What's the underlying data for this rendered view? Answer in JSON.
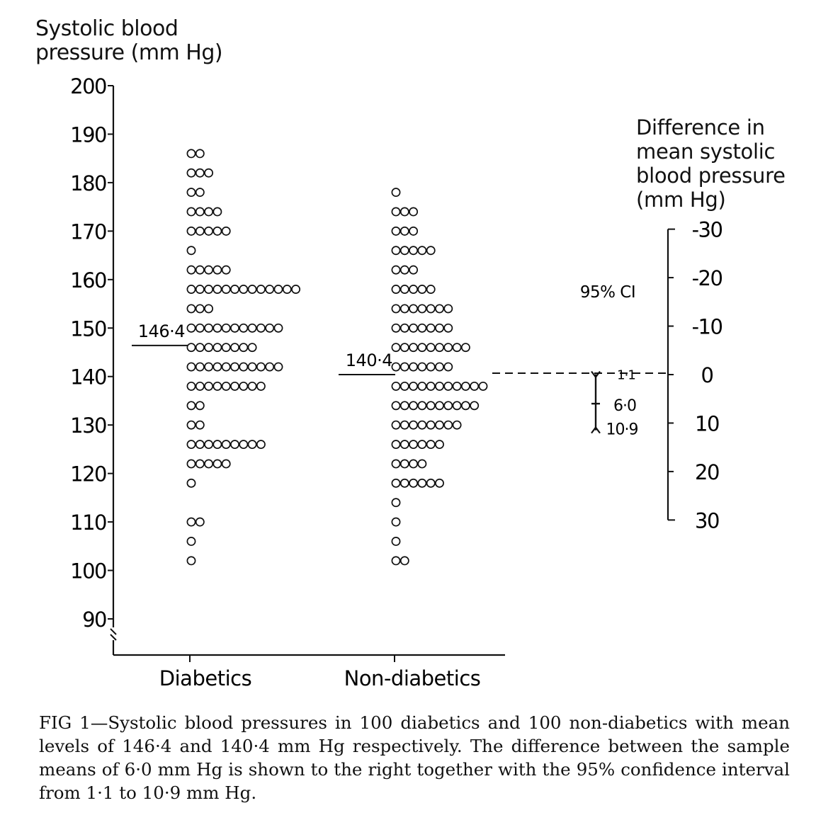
{
  "chart_data": {
    "type": "scatter",
    "subtype": "dot-plot",
    "ylabel_line1": "Systolic blood",
    "ylabel_line2": "pressure (mm Hg)",
    "yticks": [
      "90",
      "100",
      "110",
      "120",
      "130",
      "140",
      "150",
      "160",
      "170",
      "180",
      "190",
      "200"
    ],
    "ylim": [
      90,
      200
    ],
    "categories": [
      "Diabetics",
      "Non-diabetics"
    ],
    "series": [
      {
        "name": "Diabetics",
        "mean": 146.4,
        "mean_label": "146·4",
        "rows": [
          {
            "bp": 186,
            "count": 2
          },
          {
            "bp": 182,
            "count": 3
          },
          {
            "bp": 178,
            "count": 2
          },
          {
            "bp": 174,
            "count": 4
          },
          {
            "bp": 170,
            "count": 5
          },
          {
            "bp": 166,
            "count": 1
          },
          {
            "bp": 162,
            "count": 5
          },
          {
            "bp": 158,
            "count": 13
          },
          {
            "bp": 154,
            "count": 3
          },
          {
            "bp": 150,
            "count": 11
          },
          {
            "bp": 146,
            "count": 8
          },
          {
            "bp": 142,
            "count": 11
          },
          {
            "bp": 138,
            "count": 9
          },
          {
            "bp": 134,
            "count": 2
          },
          {
            "bp": 130,
            "count": 2
          },
          {
            "bp": 126,
            "count": 9
          },
          {
            "bp": 122,
            "count": 5
          },
          {
            "bp": 118,
            "count": 1
          },
          {
            "bp": 110,
            "count": 2
          },
          {
            "bp": 106,
            "count": 1
          },
          {
            "bp": 102,
            "count": 1
          }
        ]
      },
      {
        "name": "Non-diabetics",
        "mean": 140.4,
        "mean_label": "140·4",
        "rows": [
          {
            "bp": 178,
            "count": 1
          },
          {
            "bp": 174,
            "count": 3
          },
          {
            "bp": 170,
            "count": 3
          },
          {
            "bp": 166,
            "count": 5
          },
          {
            "bp": 162,
            "count": 3
          },
          {
            "bp": 158,
            "count": 5
          },
          {
            "bp": 154,
            "count": 7
          },
          {
            "bp": 150,
            "count": 7
          },
          {
            "bp": 146,
            "count": 9
          },
          {
            "bp": 142,
            "count": 7
          },
          {
            "bp": 138,
            "count": 11
          },
          {
            "bp": 134,
            "count": 10
          },
          {
            "bp": 130,
            "count": 8
          },
          {
            "bp": 126,
            "count": 6
          },
          {
            "bp": 122,
            "count": 4
          },
          {
            "bp": 118,
            "count": 6
          },
          {
            "bp": 114,
            "count": 1
          },
          {
            "bp": 110,
            "count": 1
          },
          {
            "bp": 106,
            "count": 1
          },
          {
            "bp": 102,
            "count": 2
          }
        ]
      }
    ],
    "difference_axis": {
      "label_lines": [
        "Difference in",
        "mean systolic",
        "blood pressure",
        "(mm Hg)"
      ],
      "ticks": [
        "30",
        "20",
        "10",
        "0",
        "-10",
        "-20",
        "-30"
      ],
      "range": [
        -30,
        30
      ],
      "zero_at_bp": 140.4
    },
    "ci": {
      "label": "95% CI",
      "upper": 10.9,
      "upper_label": "10·9",
      "estimate": 6.0,
      "estimate_label": "6·0",
      "lower": 1.1,
      "lower_label": "1·1"
    }
  },
  "caption": {
    "fig_label": "FIG 1",
    "text": "—Systolic blood pressures in 100 diabetics and 100 non-diabetics with mean levels of 146·4 and 140·4 mm Hg respectively. The difference between the sample means of 6·0 mm Hg is shown to the right together with the 95% confidence interval from 1·1 to 10·9 mm Hg."
  }
}
